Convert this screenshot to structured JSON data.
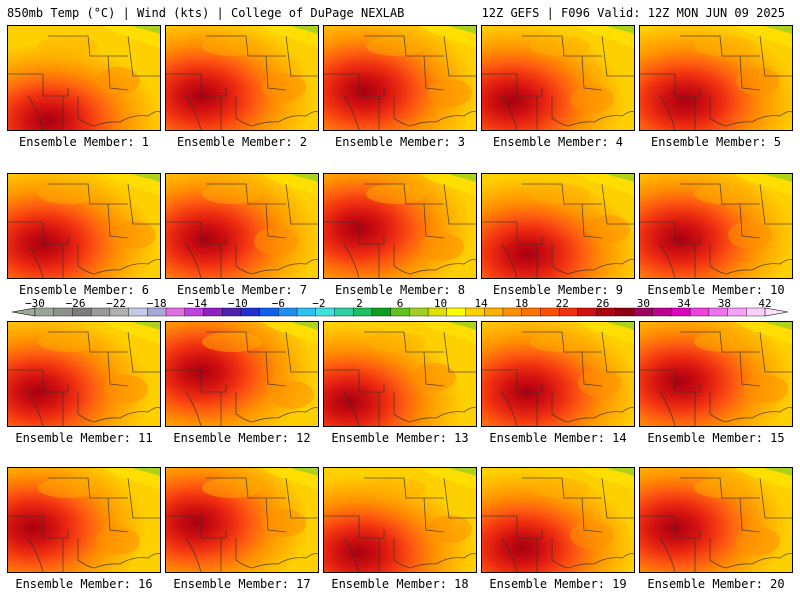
{
  "header": {
    "left": "850mb Temp (°C) | Wind (kts) | College of DuPage NEXLAB",
    "right": "12Z GEFS | F096 Valid: 12Z MON JUN 09 2025"
  },
  "colorbar": {
    "tick_labels": [
      "−30",
      "−26",
      "−22",
      "−18",
      "−14",
      "−10",
      "−6",
      "−2",
      "2",
      "6",
      "10",
      "14",
      "18",
      "22",
      "26",
      "30",
      "34",
      "38",
      "42"
    ],
    "colors": [
      "#9aa49a",
      "#8a948a",
      "#7c7c7c",
      "#9a9a9a",
      "#b0b0b0",
      "#c8c8e8",
      "#a8a8d8",
      "#e070e0",
      "#c040e0",
      "#9020c0",
      "#5020b0",
      "#2030d0",
      "#1060f0",
      "#2090f0",
      "#30c0f0",
      "#40e0e0",
      "#30d0a0",
      "#20c060",
      "#10a020",
      "#60c020",
      "#a0d020",
      "#e0e000",
      "#ffff00",
      "#ffd000",
      "#ffb000",
      "#ff9000",
      "#ff7000",
      "#ff5000",
      "#f03010",
      "#d01010",
      "#b00010",
      "#900010",
      "#a00060",
      "#c00090",
      "#e000c0",
      "#f040e0",
      "#f070f0",
      "#f8a0f8",
      "#ffd0ff"
    ]
  },
  "panels": [
    {
      "label": "Ensemble Member: 1",
      "hot": [
        40,
        95
      ]
    },
    {
      "label": "Ensemble Member: 2",
      "hot": [
        35,
        70
      ]
    },
    {
      "label": "Ensemble Member: 3",
      "hot": [
        40,
        65
      ]
    },
    {
      "label": "Ensemble Member: 4",
      "hot": [
        30,
        75
      ]
    },
    {
      "label": "Ensemble Member: 5",
      "hot": [
        45,
        75
      ]
    },
    {
      "label": "Ensemble Member: 6",
      "hot": [
        35,
        70
      ]
    },
    {
      "label": "Ensemble Member: 7",
      "hot": [
        40,
        65
      ]
    },
    {
      "label": "Ensemble Member: 8",
      "hot": [
        35,
        55
      ]
    },
    {
      "label": "Ensemble Member: 9",
      "hot": [
        45,
        80
      ]
    },
    {
      "label": "Ensemble Member: 10",
      "hot": [
        40,
        65
      ]
    },
    {
      "label": "Ensemble Member: 11",
      "hot": [
        30,
        70
      ]
    },
    {
      "label": "Ensemble Member: 12",
      "hot": [
        35,
        50
      ]
    },
    {
      "label": "Ensemble Member: 13",
      "hot": [
        25,
        80
      ]
    },
    {
      "label": "Ensemble Member: 14",
      "hot": [
        45,
        70
      ]
    },
    {
      "label": "Ensemble Member: 15",
      "hot": [
        40,
        60
      ]
    },
    {
      "label": "Ensemble Member: 16",
      "hot": [
        25,
        60
      ]
    },
    {
      "label": "Ensemble Member: 17",
      "hot": [
        30,
        55
      ]
    },
    {
      "label": "Ensemble Member: 18",
      "hot": [
        35,
        85
      ]
    },
    {
      "label": "Ensemble Member: 19",
      "hot": [
        40,
        80
      ]
    },
    {
      "label": "Ensemble Member: 20",
      "hot": [
        35,
        60
      ]
    }
  ]
}
